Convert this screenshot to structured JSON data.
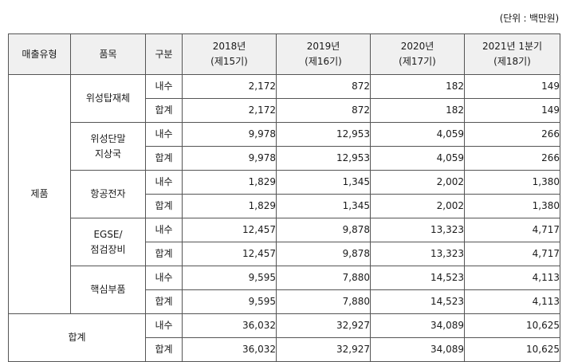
{
  "unit_label": "(단위 : 백만원)",
  "headers": {
    "sales_type": "매출유형",
    "item": "품목",
    "category": "구분",
    "years": [
      {
        "year": "2018년",
        "period": "(제15기)"
      },
      {
        "year": "2019년",
        "period": "(제16기)"
      },
      {
        "year": "2020년",
        "period": "(제17기)"
      },
      {
        "year": "2021년 1분기",
        "period": "(제18기)"
      }
    ]
  },
  "sales_type_product": "제품",
  "rows": [
    {
      "item": [
        "위성탑재체"
      ],
      "domestic_label": "내수",
      "total_label": "합계",
      "domestic": [
        "2,172",
        "872",
        "182",
        "149"
      ],
      "total": [
        "2,172",
        "872",
        "182",
        "149"
      ]
    },
    {
      "item": [
        "위성단말",
        "지상국"
      ],
      "domestic_label": "내수",
      "total_label": "합계",
      "domestic": [
        "9,978",
        "12,953",
        "4,059",
        "266"
      ],
      "total": [
        "9,978",
        "12,953",
        "4,059",
        "266"
      ]
    },
    {
      "item": [
        "항공전자"
      ],
      "domestic_label": "내수",
      "total_label": "합계",
      "domestic": [
        "1,829",
        "1,345",
        "2,002",
        "1,380"
      ],
      "total": [
        "1,829",
        "1,345",
        "2,002",
        "1,380"
      ]
    },
    {
      "item": [
        "EGSE/",
        "점검장비"
      ],
      "domestic_label": "내수",
      "total_label": "합계",
      "domestic": [
        "12,457",
        "9,878",
        "13,323",
        "4,717"
      ],
      "total": [
        "12,457",
        "9,878",
        "13,323",
        "4,717"
      ]
    },
    {
      "item": [
        "핵심부품"
      ],
      "domestic_label": "내수",
      "total_label": "합계",
      "domestic": [
        "9,595",
        "7,880",
        "14,523",
        "4,113"
      ],
      "total": [
        "9,595",
        "7,880",
        "14,523",
        "4,113"
      ]
    }
  ],
  "grand_total": {
    "label": "합계",
    "domestic_label": "내수",
    "total_label": "합계",
    "domestic": [
      "36,032",
      "32,927",
      "34,089",
      "10,625"
    ],
    "total": [
      "36,032",
      "32,927",
      "34,089",
      "10,625"
    ]
  }
}
